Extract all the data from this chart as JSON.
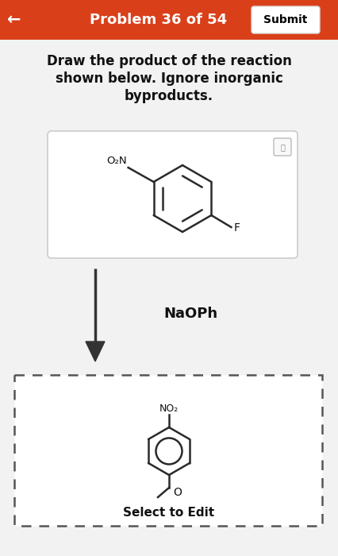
{
  "header_bg": "#d9401a",
  "header_text": "Problem 36 of 54",
  "header_text_color": "#ffffff",
  "submit_btn_color": "#ffffff",
  "submit_btn_text": "Submit",
  "submit_btn_text_color": "#000000",
  "back_arrow": "←",
  "question_text_line1": "Draw the product of the reaction",
  "question_text_line2": "shown below. Ignore inorganic",
  "question_text_line3": "byproducts.",
  "question_text_color": "#111111",
  "reagent_box_bg": "#ffffff",
  "reagent_box_border": "#cccccc",
  "reagent_label_o2n": "O₂N",
  "reagent_label_f": "F",
  "arrow_color": "#333333",
  "reagent_text": "NaOPh",
  "product_box_bg": "#ffffff",
  "product_box_border": "#555555",
  "product_label_no2": "NO₂",
  "product_label_o": "O",
  "select_edit_text": "Select to Edit",
  "page_bg": "#f2f2f2",
  "bond_color": "#2a2a2a",
  "mag_icon_color": "#aaaaaa"
}
